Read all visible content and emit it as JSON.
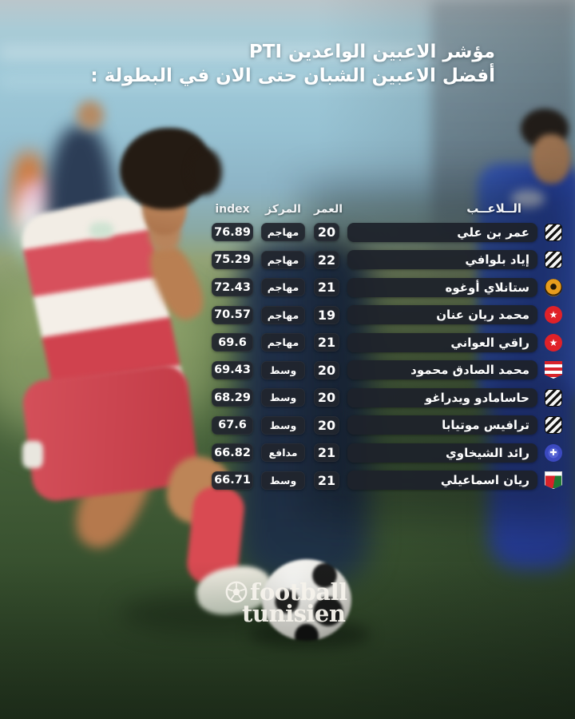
{
  "title": {
    "line1": "مؤشر الاعبين الواعدين PTI",
    "line2": "أفضل الاعبين الشبان حتى الان في البطولة :"
  },
  "table": {
    "headers": {
      "player": "الــلاعــب",
      "age": "العمر",
      "position": "المركز",
      "index": "index"
    },
    "rows": [
      {
        "name": "عمر بن علي",
        "age": "20",
        "position": "مهاجم",
        "index": "76.89",
        "logo": "black-white-diagonal-stripes"
      },
      {
        "name": "إياد بلوافي",
        "age": "22",
        "position": "مهاجم",
        "index": "75.29",
        "logo": "black-white-diagonal-stripes"
      },
      {
        "name": "ستانلاي أوغوه",
        "age": "21",
        "position": "مهاجم",
        "index": "72.43",
        "logo": "orange-black-tree-circle"
      },
      {
        "name": "محمد ريان عنان",
        "age": "19",
        "position": "مهاجم",
        "index": "70.57",
        "logo": "red-white-star-circle"
      },
      {
        "name": "راقي العواني",
        "age": "21",
        "position": "مهاجم",
        "index": "69.6",
        "logo": "red-white-star-circle"
      },
      {
        "name": "محمد الصادق محمود",
        "age": "20",
        "position": "وسط",
        "index": "69.43",
        "logo": "red-white-striped-shield"
      },
      {
        "name": "حاسامادو ويدراغو",
        "age": "20",
        "position": "وسط",
        "index": "68.29",
        "logo": "black-white-diagonal-stripes"
      },
      {
        "name": "ترافيس موتيابا",
        "age": "20",
        "position": "وسط",
        "index": "67.6",
        "logo": "black-white-diagonal-stripes"
      },
      {
        "name": "رائد الشيخاوي",
        "age": "21",
        "position": "مدافع",
        "index": "66.82",
        "logo": "blue-white-cross-circle"
      },
      {
        "name": "ريان اسماعيلي",
        "age": "21",
        "position": "وسط",
        "index": "66.71",
        "logo": "white-red-green-shield"
      }
    ]
  },
  "watermark": {
    "line1": "football",
    "line2": "tunisien"
  },
  "colors": {
    "pill_bg": "#21252E",
    "text": "#FFFFFF",
    "jersey_red": "#D0424E",
    "grass_dark": "#2C4226",
    "sky_blue": "#9FC9D8",
    "watermark": "#F6F3EC"
  }
}
